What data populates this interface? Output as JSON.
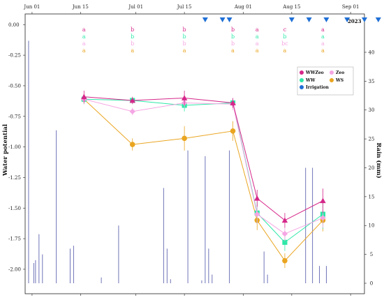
{
  "chart_data": {
    "type": "line",
    "year_label": "2023",
    "ylabel": "Water potential",
    "y2label": "Rain (mm)",
    "x_tick_labels": [
      "Jun 01",
      "Jun 15",
      "Jul 01",
      "Jul 15",
      "Aug 01",
      "Aug 15",
      "Sep 01"
    ],
    "x_tick_days": [
      0,
      14,
      30,
      44,
      61,
      75,
      92
    ],
    "xlim_days": [
      -2,
      96
    ],
    "x_origin_date": "2023-06-01",
    "yticks": [
      0,
      -0.25,
      -0.5,
      -0.75,
      -1.0,
      -1.25,
      -1.5,
      -1.75,
      -2.0
    ],
    "ytick_labels": [
      "0.00",
      "-0.25",
      "-0.50",
      "-0.75",
      "-1.00",
      "-1.25",
      "-1.50",
      "-1.75",
      "-2.00"
    ],
    "ylim": [
      -2.2,
      0.03
    ],
    "y2ticks": [
      0,
      5,
      10,
      15,
      20,
      25,
      30,
      35,
      40
    ],
    "y2lim": [
      0,
      43.5
    ],
    "irrigation_days": [
      50,
      55,
      57,
      75,
      80,
      85,
      91,
      96,
      100
    ],
    "sample_days": [
      15,
      29,
      44,
      58,
      65,
      73,
      84,
      91
    ],
    "series": [
      {
        "name": "WWZeo",
        "color": "#d6278a",
        "marker": "triangle",
        "x_days": [
          15,
          29,
          44,
          58,
          65,
          73,
          84
        ],
        "values": [
          -0.59,
          -0.62,
          -0.6,
          -0.64,
          -1.42,
          -1.6,
          -1.44
        ],
        "errors": [
          0.05,
          0.03,
          0.06,
          0.04,
          0.07,
          0.06,
          0.1
        ]
      },
      {
        "name": "Zeo",
        "color": "#f5a6e3",
        "marker": "diamond",
        "x_days": [
          15,
          29,
          44,
          58,
          65,
          73,
          84
        ],
        "values": [
          -0.61,
          -0.71,
          -0.64,
          -0.65,
          -1.55,
          -1.71,
          -1.58
        ],
        "errors": [
          0.04,
          0.03,
          0.04,
          0.05,
          0.08,
          0.06,
          0.08
        ]
      },
      {
        "name": "WW",
        "color": "#2ee8a8",
        "marker": "square",
        "x_days": [
          15,
          29,
          44,
          58,
          65,
          73,
          84
        ],
        "values": [
          -0.61,
          -0.62,
          -0.66,
          -0.64,
          -1.54,
          -1.78,
          -1.55
        ],
        "errors": [
          0.04,
          0.02,
          0.05,
          0.04,
          0.09,
          0.07,
          0.12
        ]
      },
      {
        "name": "WS",
        "color": "#eaa520",
        "marker": "circle",
        "x_days": [
          15,
          29,
          44,
          58,
          65,
          73,
          84
        ],
        "values": [
          -0.61,
          -0.98,
          -0.93,
          -0.87,
          -1.6,
          -1.93,
          -1.6
        ],
        "errors": [
          0.04,
          0.05,
          0.1,
          0.08,
          0.08,
          0.06,
          0.09
        ]
      }
    ],
    "letters": [
      {
        "x_day": 15,
        "values": [
          "a",
          "a",
          "a",
          "a"
        ]
      },
      {
        "x_day": 29,
        "values": [
          "b",
          "b",
          "b",
          "a"
        ]
      },
      {
        "x_day": 44,
        "values": [
          "b",
          "b",
          "b",
          "a"
        ]
      },
      {
        "x_day": 58,
        "values": [
          "b",
          "b",
          "b",
          "a"
        ]
      },
      {
        "x_day": 65,
        "values": [
          "a",
          "a",
          "a",
          "a"
        ]
      },
      {
        "x_day": 73,
        "values": [
          "c",
          "b",
          "bc",
          "a"
        ]
      },
      {
        "x_day": 84,
        "values": [
          "a",
          "a",
          "a",
          "a"
        ]
      }
    ],
    "letter_colors": [
      "#d6278a",
      "#2ee8a8",
      "#f5a6e3",
      "#eaa520"
    ],
    "rain_days": [
      -1,
      0.5,
      1,
      2,
      3,
      7,
      11,
      12,
      20,
      25,
      38,
      39,
      40,
      45,
      49,
      50,
      51,
      52,
      57,
      67,
      68,
      79,
      81,
      83,
      85
    ],
    "rain_mm": [
      42,
      3.5,
      4,
      8.5,
      5,
      26.5,
      6,
      6.5,
      1,
      10,
      16.5,
      6,
      0.7,
      23,
      0.5,
      22,
      6,
      1.5,
      23,
      5.5,
      1.5,
      20,
      20,
      3,
      3
    ],
    "legend": {
      "position": "top-right",
      "entries": [
        "WWZeo",
        "Zeo",
        "WW",
        "WS",
        "Irrigation"
      ]
    },
    "colors": {
      "rain_bar": "#6f74b8",
      "irrigation": "#1f6fd6",
      "axis": "#222222"
    }
  }
}
